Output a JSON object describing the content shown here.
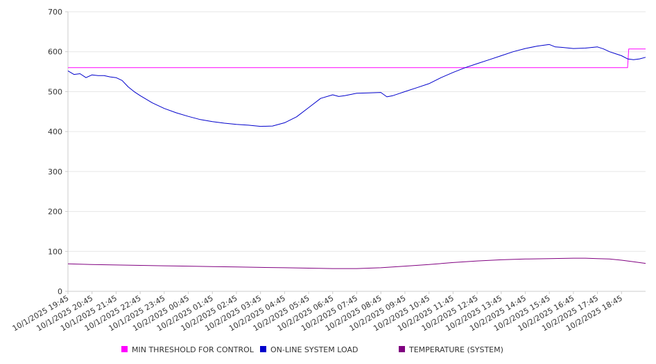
{
  "chart_data": {
    "type": "line",
    "title": "",
    "xlabel": "",
    "ylabel": "",
    "ylim": [
      0,
      700
    ],
    "yticks": [
      0,
      100,
      200,
      300,
      400,
      500,
      600,
      700
    ],
    "ytick_labels": [
      "0",
      "100",
      "200",
      "300",
      "400",
      "500",
      "600",
      "700"
    ],
    "x_index_range": [
      0,
      24
    ],
    "xtick_labels": [
      "10/1/2025 19:45",
      "10/1/2025 20:45",
      "10/1/2025 21:45",
      "10/1/2025 22:45",
      "10/1/2025 23:45",
      "10/2/2025 00:45",
      "10/2/2025 01:45",
      "10/2/2025 02:45",
      "10/2/2025 03:45",
      "10/2/2025 04:45",
      "10/2/2025 05:45",
      "10/2/2025 06:45",
      "10/2/2025 07:45",
      "10/2/2025 08:45",
      "10/2/2025 09:45",
      "10/2/2025 10:45",
      "10/2/2025 11:45",
      "10/2/2025 12:45",
      "10/2/2025 13:45",
      "10/2/2025 14:45",
      "10/2/2025 15:45",
      "10/2/2025 16:45",
      "10/2/2025 17:45",
      "10/2/2025 18:45"
    ],
    "grid": "horizontal",
    "legend_position": "bottom",
    "series": [
      {
        "name": "MIN THRESHOLD FOR CONTROL",
        "color": "#ff00ff",
        "x": [
          0,
          23.25,
          23.3,
          24
        ],
        "values": [
          560,
          560,
          607,
          607
        ]
      },
      {
        "name": "ON-LINE SYSTEM LOAD",
        "color": "#0000cc",
        "x": [
          0,
          0.25,
          0.5,
          0.75,
          1,
          1.25,
          1.5,
          1.75,
          2,
          2.25,
          2.5,
          2.75,
          3,
          3.5,
          4,
          4.5,
          5,
          5.5,
          6,
          6.5,
          7,
          7.5,
          8,
          8.5,
          9,
          9.5,
          10,
          10.5,
          11,
          11.25,
          11.5,
          11.75,
          12,
          12.5,
          13,
          13.25,
          13.5,
          13.75,
          14,
          14.5,
          15,
          15.5,
          16,
          16.5,
          17,
          17.5,
          18,
          18.5,
          19,
          19.5,
          20,
          20.25,
          20.5,
          21,
          21.5,
          22,
          22.25,
          22.5,
          22.75,
          23,
          23.25,
          23.5,
          23.75,
          24
        ],
        "values": [
          552,
          543,
          545,
          535,
          542,
          540,
          540,
          537,
          535,
          528,
          512,
          500,
          490,
          472,
          458,
          447,
          438,
          430,
          425,
          421,
          418,
          416,
          413,
          414,
          422,
          437,
          460,
          483,
          492,
          488,
          490,
          493,
          496,
          497,
          498,
          487,
          490,
          495,
          500,
          510,
          520,
          535,
          548,
          560,
          570,
          580,
          590,
          600,
          608,
          614,
          618,
          612,
          611,
          608,
          609,
          612,
          607,
          600,
          595,
          590,
          582,
          580,
          582,
          586
        ]
      },
      {
        "name": "TEMPERATURE (SYSTEM)",
        "color": "#800080",
        "x": [
          0,
          1,
          2,
          3,
          4,
          5,
          6,
          7,
          8,
          9,
          10,
          11,
          12,
          13,
          14,
          15,
          16,
          17,
          18,
          19,
          20,
          21,
          21.5,
          22,
          22.5,
          23,
          23.5,
          24
        ],
        "values": [
          69,
          67,
          66,
          65,
          64,
          63,
          62,
          61,
          60,
          59,
          58,
          57,
          57,
          59,
          63,
          67,
          72,
          76,
          79,
          81,
          82,
          83,
          83,
          82,
          81,
          78,
          74,
          70
        ]
      }
    ]
  }
}
